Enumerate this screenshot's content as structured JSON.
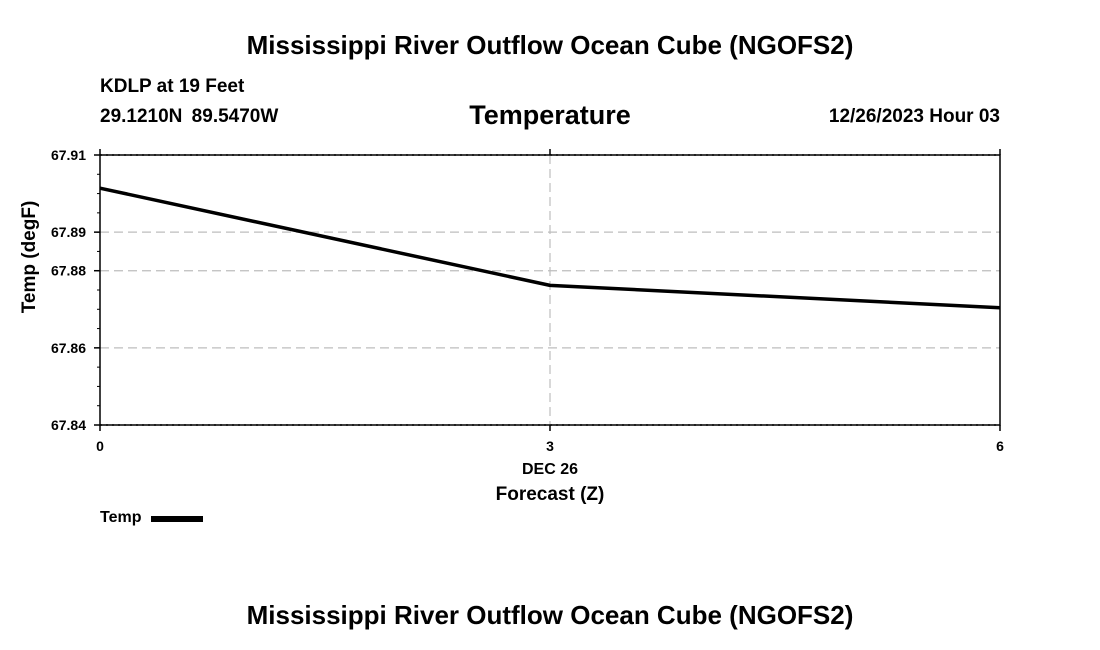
{
  "header": {
    "title": "Mississippi River Outflow Ocean Cube (NGOFS2)",
    "station": "KDLP at 19 Feet",
    "coordinates": "29.1210N  89.5470W",
    "datetime": "12/26/2023 Hour 03"
  },
  "footer": {
    "title": "Mississippi River Outflow Ocean Cube (NGOFS2)"
  },
  "chart_data": {
    "type": "line",
    "title": "Temperature",
    "xlabel": "Forecast (Z)",
    "ylabel": "Temp (degF)",
    "x_date_label": "DEC 26",
    "x_ticks": [
      0,
      3,
      6
    ],
    "x_tick_labels": [
      "0",
      "3",
      "6"
    ],
    "y_ticks": [
      67.84,
      67.86,
      67.88,
      67.89,
      67.91
    ],
    "y_tick_labels": [
      "67.84",
      "67.86",
      "67.88",
      "67.89",
      "67.91"
    ],
    "xlim": [
      0,
      6
    ],
    "ylim": [
      67.84,
      67.91
    ],
    "grid": true,
    "legend_position": "bottom-left",
    "series": [
      {
        "name": "Temp",
        "color": "#000000",
        "x": [
          0,
          3,
          6
        ],
        "values": [
          67.9014,
          67.8762,
          67.8704
        ]
      }
    ]
  }
}
